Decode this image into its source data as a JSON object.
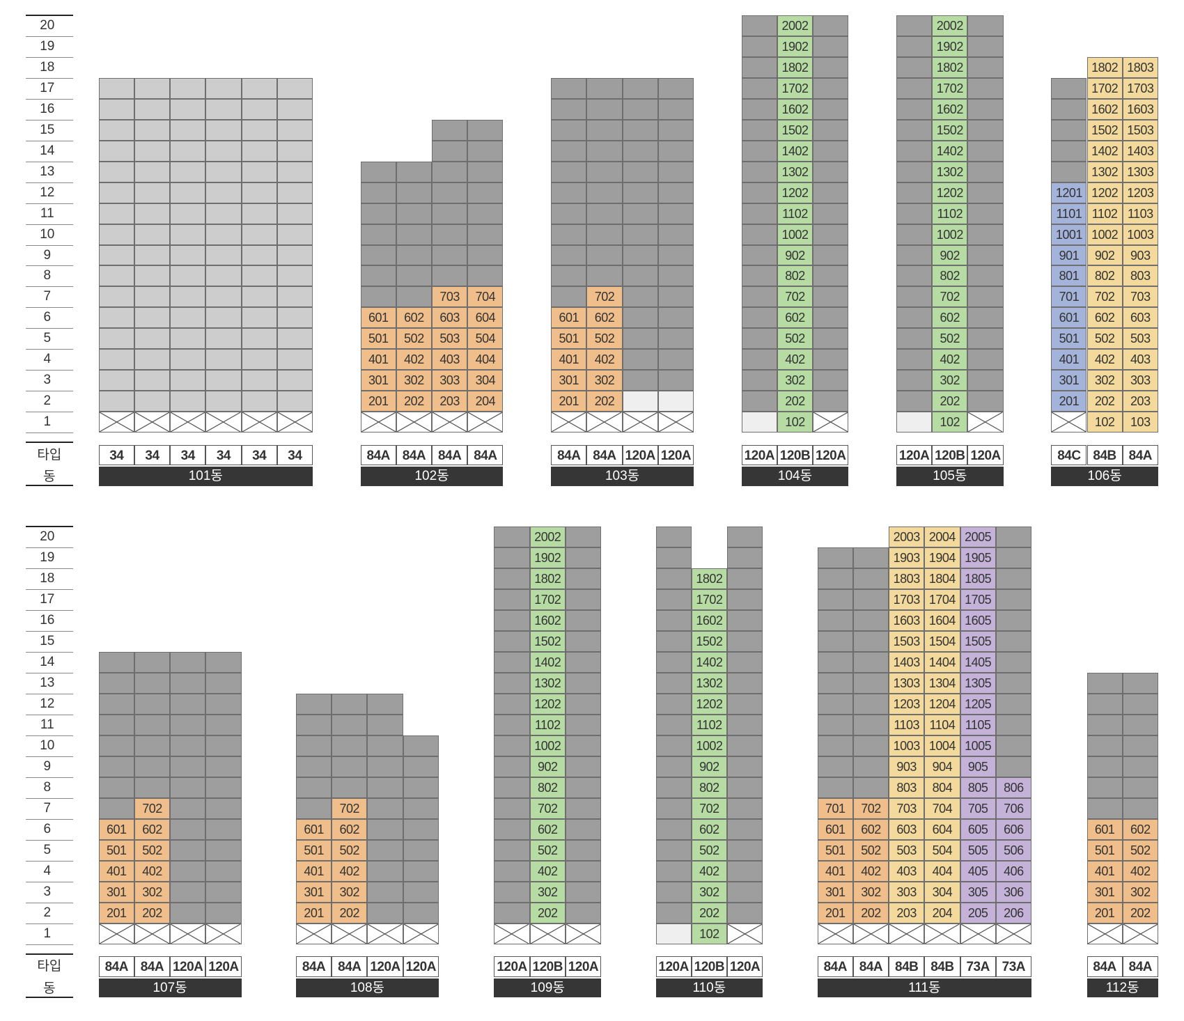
{
  "labels": {
    "type_row": "타입",
    "building_row": "동"
  },
  "floors": [
    "20",
    "19",
    "18",
    "17",
    "16",
    "15",
    "14",
    "13",
    "12",
    "11",
    "10",
    "9",
    "8",
    "7",
    "6",
    "5",
    "4",
    "3",
    "2",
    "1"
  ],
  "colors": {
    "G": "#9e9e9e",
    "L": "#cdcdcd",
    "W": "#efefef",
    "O": "#efbe8a",
    "Y": "#f3d99b",
    "N": "#b6dca4",
    "B": "#a3b3da",
    "P": "#c4b2d9",
    "X": "#ffffff"
  },
  "legend_note": "G=grey unit, L=light grey unit, W=white/empty, O=orange, Y=yellow, N=green, B=blue, P=purple, X=pilotis (crossed)",
  "buildings": [
    {
      "name": "101동",
      "types": [
        "34",
        "34",
        "34",
        "34",
        "34",
        "34"
      ],
      "columns": [
        {
          "top": 17,
          "stack": [
            [
              "L",
              2,
              17
            ]
          ],
          "ground": "X"
        },
        {
          "top": 17,
          "stack": [
            [
              "L",
              2,
              17
            ]
          ],
          "ground": "X"
        },
        {
          "top": 17,
          "stack": [
            [
              "L",
              2,
              17
            ]
          ],
          "ground": "X"
        },
        {
          "top": 17,
          "stack": [
            [
              "L",
              2,
              17
            ]
          ],
          "ground": "X"
        },
        {
          "top": 17,
          "stack": [
            [
              "L",
              2,
              17
            ]
          ],
          "ground": "X"
        },
        {
          "top": 17,
          "stack": [
            [
              "L",
              2,
              17
            ]
          ],
          "ground": "X"
        }
      ]
    },
    {
      "name": "102동",
      "types": [
        "84A",
        "84A",
        "84A",
        "84A"
      ],
      "columns": [
        {
          "top": 13,
          "stack": [
            [
              "O",
              2,
              6,
              "01"
            ],
            [
              "G",
              7,
              13
            ]
          ],
          "ground": "X"
        },
        {
          "top": 13,
          "stack": [
            [
              "O",
              2,
              6,
              "02"
            ],
            [
              "G",
              7,
              13
            ]
          ],
          "ground": "X"
        },
        {
          "top": 15,
          "stack": [
            [
              "O",
              2,
              7,
              "03"
            ],
            [
              "G",
              8,
              15
            ]
          ],
          "ground": "X"
        },
        {
          "top": 15,
          "stack": [
            [
              "O",
              2,
              7,
              "04"
            ],
            [
              "G",
              8,
              15
            ]
          ],
          "ground": "X"
        }
      ]
    },
    {
      "name": "103동",
      "types": [
        "84A",
        "84A",
        "120A",
        "120A"
      ],
      "columns": [
        {
          "top": 17,
          "stack": [
            [
              "O",
              2,
              6,
              "01"
            ],
            [
              "G",
              7,
              17
            ]
          ],
          "ground": "X"
        },
        {
          "top": 17,
          "stack": [
            [
              "O",
              2,
              7,
              "02"
            ],
            [
              "G",
              8,
              17
            ]
          ],
          "ground": "X"
        },
        {
          "top": 17,
          "stack": [
            [
              "W",
              2,
              2
            ],
            [
              "G",
              3,
              17
            ]
          ],
          "ground": "X"
        },
        {
          "top": 17,
          "stack": [
            [
              "W",
              2,
              2
            ],
            [
              "G",
              3,
              17
            ]
          ],
          "ground": "X"
        }
      ]
    },
    {
      "name": "104동",
      "types": [
        "120A",
        "120B",
        "120A"
      ],
      "columns": [
        {
          "top": 20,
          "stack": [
            [
              "G",
              2,
              20
            ]
          ],
          "ground": "W"
        },
        {
          "top": 20,
          "stack": [
            [
              "N",
              1,
              20,
              "02"
            ]
          ],
          "ground": null
        },
        {
          "top": 20,
          "stack": [
            [
              "G",
              2,
              20
            ]
          ],
          "ground": "X"
        }
      ]
    },
    {
      "name": "105동",
      "types": [
        "120A",
        "120B",
        "120A"
      ],
      "columns": [
        {
          "top": 20,
          "stack": [
            [
              "G",
              2,
              20
            ]
          ],
          "ground": "W"
        },
        {
          "top": 20,
          "stack": [
            [
              "N",
              1,
              20,
              "02"
            ]
          ],
          "ground": null
        },
        {
          "top": 20,
          "stack": [
            [
              "G",
              2,
              20
            ]
          ],
          "ground": "X"
        }
      ]
    },
    {
      "name": "106동",
      "types": [
        "84C",
        "84B",
        "84A"
      ],
      "columns": [
        {
          "top": 17,
          "stack": [
            [
              "B",
              2,
              12,
              "01"
            ],
            [
              "G",
              13,
              17
            ]
          ],
          "ground": "X"
        },
        {
          "top": 18,
          "stack": [
            [
              "Y",
              1,
              18,
              "02"
            ]
          ],
          "ground": null
        },
        {
          "top": 18,
          "stack": [
            [
              "Y",
              1,
              18,
              "03"
            ]
          ],
          "ground": null
        }
      ]
    },
    {
      "name": "107동",
      "types": [
        "84A",
        "84A",
        "120A",
        "120A"
      ],
      "columns": [
        {
          "top": 14,
          "stack": [
            [
              "O",
              2,
              6,
              "01"
            ],
            [
              "G",
              7,
              14
            ]
          ],
          "ground": "X"
        },
        {
          "top": 14,
          "stack": [
            [
              "O",
              2,
              7,
              "02"
            ],
            [
              "G",
              8,
              14
            ]
          ],
          "ground": "X"
        },
        {
          "top": 14,
          "stack": [
            [
              "G",
              2,
              14
            ]
          ],
          "ground": "X"
        },
        {
          "top": 14,
          "stack": [
            [
              "G",
              2,
              14
            ]
          ],
          "ground": "X"
        }
      ]
    },
    {
      "name": "108동",
      "types": [
        "84A",
        "84A",
        "120A",
        "120A"
      ],
      "columns": [
        {
          "top": 12,
          "stack": [
            [
              "O",
              2,
              6,
              "01"
            ],
            [
              "G",
              7,
              12
            ]
          ],
          "ground": "X"
        },
        {
          "top": 12,
          "stack": [
            [
              "O",
              2,
              7,
              "02"
            ],
            [
              "G",
              8,
              12
            ]
          ],
          "ground": "X"
        },
        {
          "top": 12,
          "stack": [
            [
              "G",
              2,
              12
            ]
          ],
          "ground": "X"
        },
        {
          "top": 10,
          "stack": [
            [
              "G",
              2,
              10
            ]
          ],
          "ground": "X"
        }
      ]
    },
    {
      "name": "109동",
      "types": [
        "120A",
        "120B",
        "120A"
      ],
      "columns": [
        {
          "top": 20,
          "stack": [
            [
              "G",
              2,
              20
            ]
          ],
          "ground": "X"
        },
        {
          "top": 20,
          "stack": [
            [
              "N",
              2,
              20,
              "02"
            ]
          ],
          "ground": "X"
        },
        {
          "top": 20,
          "stack": [
            [
              "G",
              2,
              20
            ]
          ],
          "ground": "X"
        }
      ]
    },
    {
      "name": "110동",
      "types": [
        "120A",
        "120B",
        "120A"
      ],
      "columns": [
        {
          "top": 20,
          "stack": [
            [
              "G",
              2,
              20
            ]
          ],
          "ground": "W"
        },
        {
          "top": 18,
          "stack": [
            [
              "N",
              1,
              18,
              "02"
            ]
          ],
          "ground": null
        },
        {
          "top": 20,
          "stack": [
            [
              "G",
              2,
              20
            ]
          ],
          "ground": "X"
        }
      ]
    },
    {
      "name": "111동",
      "types": [
        "84A",
        "84A",
        "84B",
        "84B",
        "73A",
        "73A"
      ],
      "columns": [
        {
          "top": 19,
          "stack": [
            [
              "O",
              2,
              7,
              "01"
            ],
            [
              "G",
              8,
              19
            ]
          ],
          "ground": "X"
        },
        {
          "top": 19,
          "stack": [
            [
              "O",
              2,
              7,
              "02"
            ],
            [
              "G",
              8,
              19
            ]
          ],
          "ground": "X"
        },
        {
          "top": 20,
          "stack": [
            [
              "Y",
              2,
              20,
              "03"
            ]
          ],
          "ground": "X"
        },
        {
          "top": 20,
          "stack": [
            [
              "Y",
              2,
              20,
              "04"
            ]
          ],
          "ground": "X"
        },
        {
          "top": 20,
          "stack": [
            [
              "P",
              2,
              20,
              "05"
            ]
          ],
          "ground": "X"
        },
        {
          "top": 20,
          "stack": [
            [
              "P",
              2,
              8,
              "06"
            ],
            [
              "G",
              9,
              20
            ]
          ],
          "ground": "X"
        }
      ]
    },
    {
      "name": "112동",
      "types": [
        "84A",
        "84A"
      ],
      "columns": [
        {
          "top": 13,
          "stack": [
            [
              "O",
              2,
              6,
              "01"
            ],
            [
              "G",
              7,
              13
            ]
          ],
          "ground": "X"
        },
        {
          "top": 13,
          "stack": [
            [
              "O",
              2,
              6,
              "02"
            ],
            [
              "G",
              7,
              13
            ]
          ],
          "ground": "X"
        }
      ]
    }
  ]
}
